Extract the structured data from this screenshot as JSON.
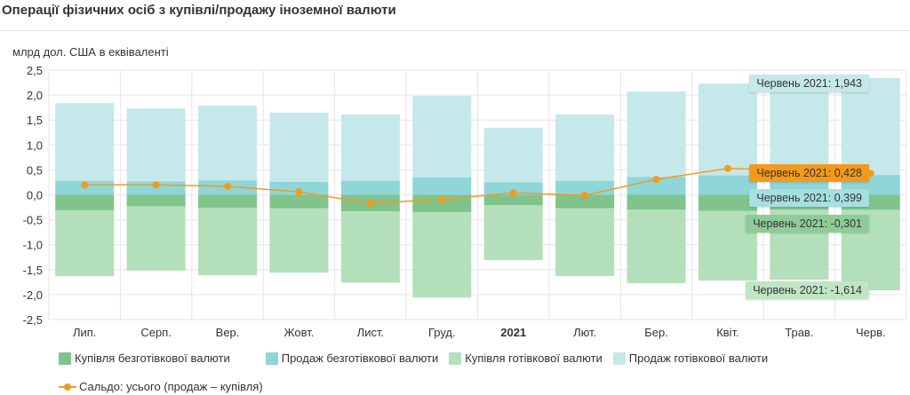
{
  "title": "Операції фізичних осіб з купівлі/продажу іноземної валюти",
  "colors": {
    "cashless_buy": "#80c48b",
    "cashless_sell": "#8ed6d8",
    "cash_buy": "#b3dfba",
    "cash_sell": "#c5e8ea",
    "balance": "#f29a1e"
  },
  "chart_data": {
    "type": "bar",
    "stacked": true,
    "ylabel": "млрд дол. США в еквіваленті",
    "ylim": [
      -2.5,
      2.5
    ],
    "yticks": [
      "2,5",
      "2,0",
      "1,5",
      "1,0",
      "0,5",
      "0,0",
      "-0,5",
      "-1,0",
      "-1,5",
      "-2,0",
      "-2,5"
    ],
    "categories": [
      "Лип.",
      "Серп.",
      "Вер.",
      "Жовт.",
      "Лист.",
      "Груд.",
      "2021",
      "Лют.",
      "Бер.",
      "Квіт.",
      "Трав.",
      "Черв."
    ],
    "bold_categories": [
      "2021"
    ],
    "grid": true,
    "legend_position": "bottom",
    "series": [
      {
        "key": "cashless_buy",
        "name": "Купівля безготівкової валюти",
        "values": [
          -0.31,
          -0.23,
          -0.26,
          -0.27,
          -0.33,
          -0.35,
          -0.21,
          -0.27,
          -0.3,
          -0.32,
          -0.3,
          -0.301
        ]
      },
      {
        "key": "cashless_sell",
        "name": "Продаж безготівкової валюти",
        "values": [
          0.28,
          0.27,
          0.29,
          0.26,
          0.28,
          0.35,
          0.25,
          0.28,
          0.36,
          0.39,
          0.38,
          0.399
        ]
      },
      {
        "key": "cash_buy",
        "name": "Купівля готівкової валюти",
        "values": [
          -1.32,
          -1.29,
          -1.35,
          -1.29,
          -1.43,
          -1.71,
          -1.1,
          -1.36,
          -1.47,
          -1.4,
          -1.4,
          -1.614
        ]
      },
      {
        "key": "cash_sell",
        "name": "Продаж готівкової валюти",
        "values": [
          1.56,
          1.46,
          1.5,
          1.39,
          1.33,
          1.63,
          1.09,
          1.33,
          1.71,
          1.84,
          1.8,
          1.943
        ]
      },
      {
        "key": "balance",
        "type": "line",
        "name": "Сальдо: усього (продаж – купівля)",
        "values": [
          0.2,
          0.2,
          0.17,
          0.06,
          -0.17,
          -0.09,
          0.04,
          -0.01,
          0.31,
          0.53,
          0.49,
          0.428
        ]
      }
    ],
    "tooltips": [
      {
        "key": "cash_sell",
        "text": "Червень 2021: 1,943"
      },
      {
        "key": "balance",
        "text": "Червень 2021: 0,428"
      },
      {
        "key": "cashless_sell",
        "text": "Червень 2021: 0,399"
      },
      {
        "key": "cashless_buy",
        "text": "Червень 2021: -0,301"
      },
      {
        "key": "cash_buy",
        "text": "Червень 2021: -1,614"
      }
    ]
  }
}
